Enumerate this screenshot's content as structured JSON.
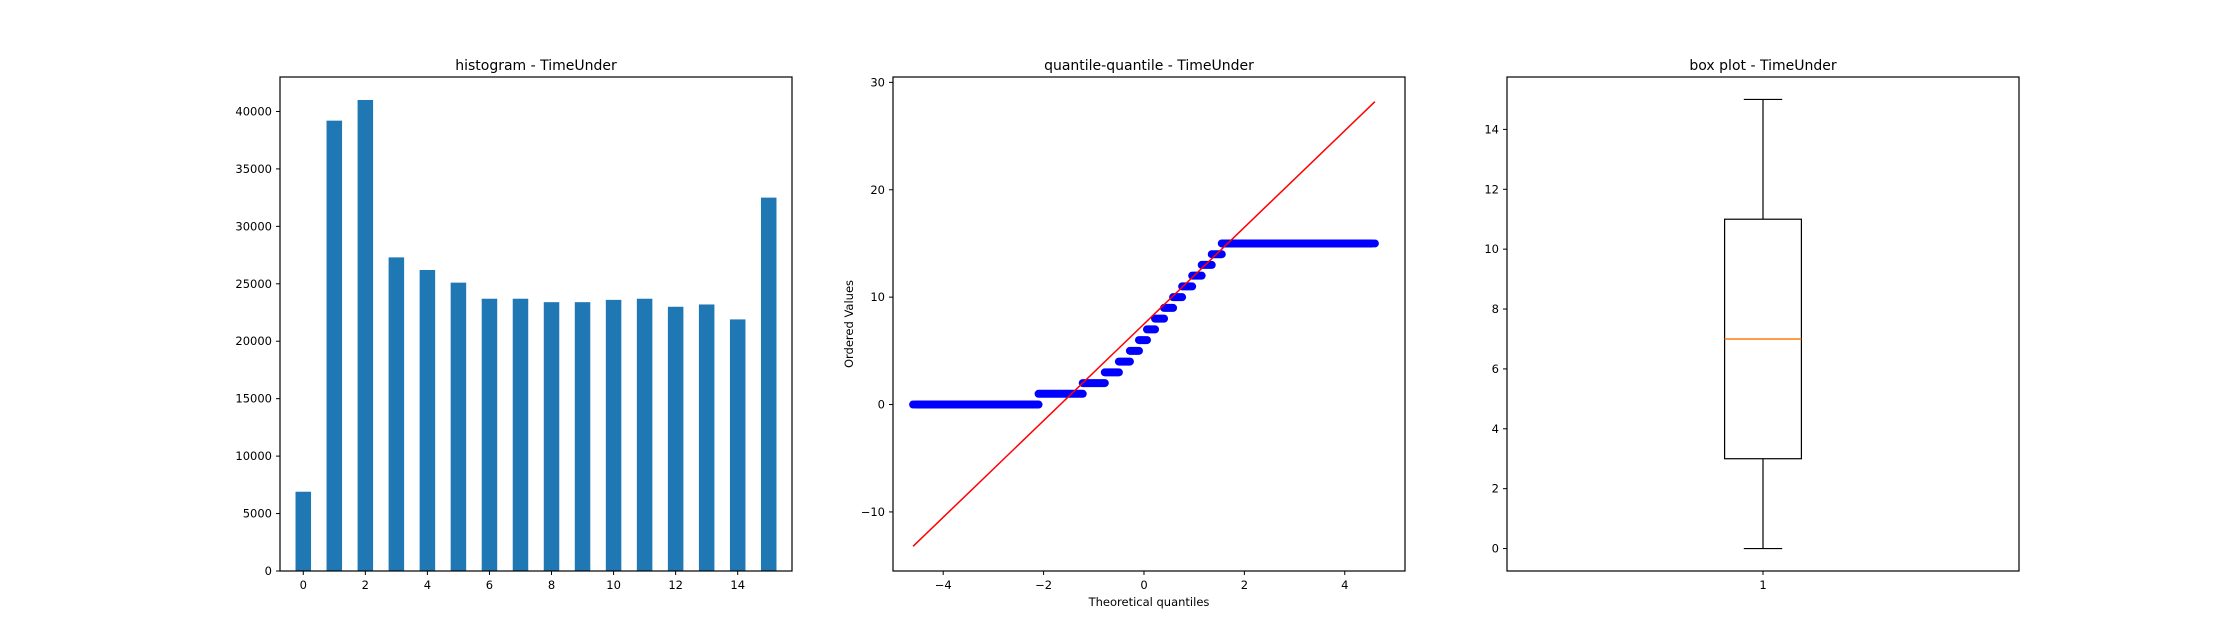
{
  "chart_data": [
    {
      "type": "bar",
      "title": "histogram - TimeUnder",
      "xlabel": "",
      "ylabel": "",
      "x": [
        0,
        1,
        2,
        3,
        4,
        5,
        6,
        7,
        8,
        9,
        10,
        11,
        12,
        13,
        14,
        15
      ],
      "values": [
        6900,
        39200,
        41000,
        27300,
        26200,
        25100,
        23700,
        23700,
        23400,
        23400,
        23600,
        23700,
        23000,
        23200,
        21900,
        32500
      ],
      "xlim": [
        -0.75,
        15.75
      ],
      "ylim": [
        0,
        43000
      ],
      "xticks": [
        0,
        2,
        4,
        6,
        8,
        10,
        12,
        14
      ],
      "yticks": [
        0,
        5000,
        10000,
        15000,
        20000,
        25000,
        30000,
        35000,
        40000
      ],
      "color": "#1f77b4",
      "grid": false
    },
    {
      "type": "scatter",
      "title": "quantile-quantile - TimeUnder",
      "xlabel": "Theoretical quantiles",
      "ylabel": "Ordered Values",
      "xlim": [
        -5.0,
        5.2
      ],
      "ylim": [
        -15.5,
        30.5
      ],
      "xticks": [
        -4,
        -2,
        0,
        2,
        4
      ],
      "yticks": [
        -10,
        0,
        10,
        20,
        30
      ],
      "steps": [
        {
          "value": 0,
          "x_start": -4.55,
          "x_end": -2.1
        },
        {
          "value": 1,
          "x_start": -2.1,
          "x_end": -1.22
        },
        {
          "value": 2,
          "x_start": -1.22,
          "x_end": -0.78
        },
        {
          "value": 3,
          "x_start": -0.78,
          "x_end": -0.5
        },
        {
          "value": 4,
          "x_start": -0.5,
          "x_end": -0.28
        },
        {
          "value": 5,
          "x_start": -0.28,
          "x_end": -0.1
        },
        {
          "value": 6,
          "x_start": -0.1,
          "x_end": 0.06
        },
        {
          "value": 7,
          "x_start": 0.06,
          "x_end": 0.22
        },
        {
          "value": 8,
          "x_start": 0.22,
          "x_end": 0.4
        },
        {
          "value": 9,
          "x_start": 0.4,
          "x_end": 0.58
        },
        {
          "value": 10,
          "x_start": 0.58,
          "x_end": 0.76
        },
        {
          "value": 11,
          "x_start": 0.76,
          "x_end": 0.96
        },
        {
          "value": 12,
          "x_start": 0.96,
          "x_end": 1.15
        },
        {
          "value": 13,
          "x_start": 1.15,
          "x_end": 1.35
        },
        {
          "value": 14,
          "x_start": 1.35,
          "x_end": 1.55
        },
        {
          "value": 15,
          "x_start": 1.55,
          "x_end": 4.55
        }
      ],
      "outliers": [
        {
          "x": -4.6,
          "y": 0
        },
        {
          "x": 4.6,
          "y": 15
        }
      ],
      "fit_line": {
        "slope": 4.5,
        "intercept": 7.5,
        "x_range": [
          -4.6,
          4.6
        ]
      },
      "point_color": "#0000ff",
      "line_color": "#ff0000",
      "grid": false
    },
    {
      "type": "box",
      "title": "box plot - TimeUnder",
      "categories": [
        "1"
      ],
      "whisker_low": 0,
      "q1": 3,
      "median": 7,
      "q3": 11,
      "whisker_high": 15,
      "ylim": [
        -0.75,
        15.75
      ],
      "yticks": [
        0,
        2,
        4,
        6,
        8,
        10,
        12,
        14
      ],
      "median_color": "#ff7f0e",
      "grid": false
    }
  ]
}
